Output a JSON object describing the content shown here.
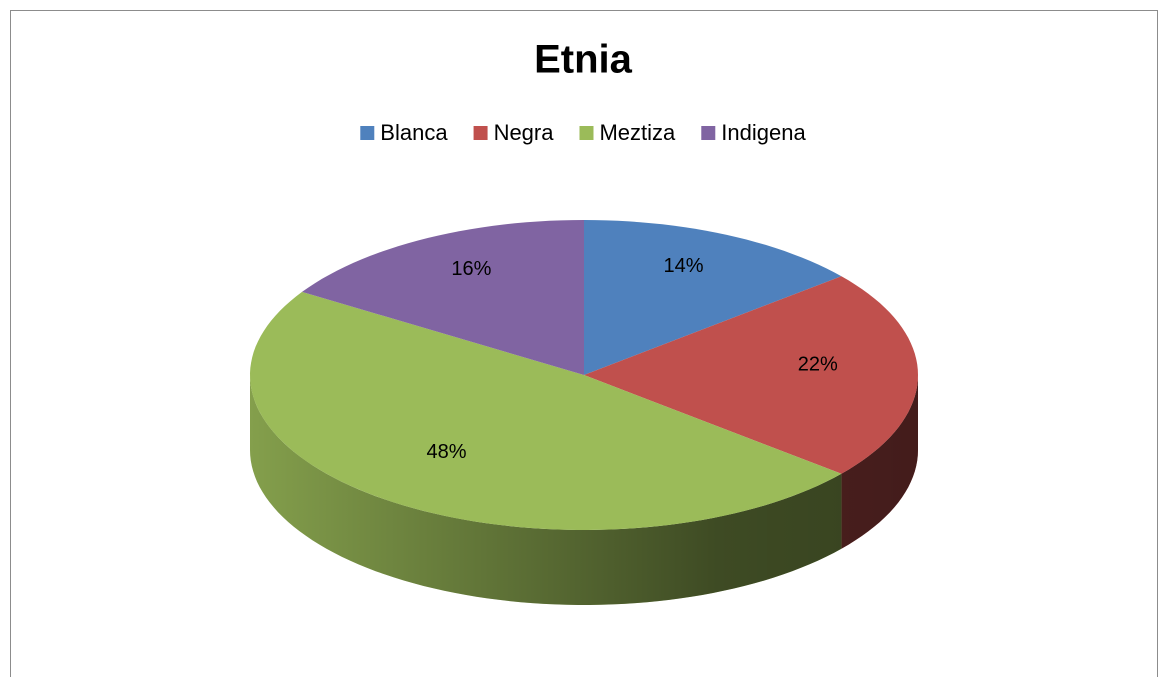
{
  "chart_data": {
    "type": "pie3d",
    "title": "Etnia",
    "categories": [
      "Blanca",
      "Negra",
      "Meztiza",
      "Indigena"
    ],
    "values": [
      14,
      22,
      48,
      16
    ],
    "value_labels": [
      "14%",
      "22%",
      "48%",
      "16%"
    ],
    "colors": [
      "#4f81bd",
      "#c0504d",
      "#9bbb59",
      "#8064a2"
    ],
    "legend": "top"
  }
}
